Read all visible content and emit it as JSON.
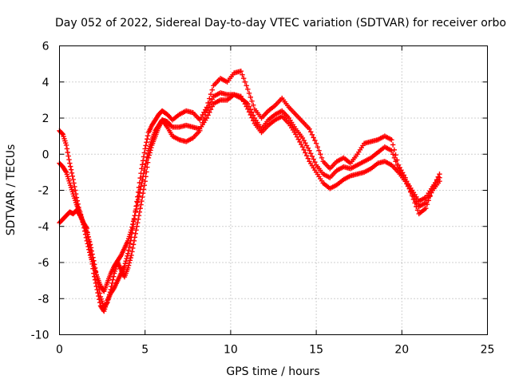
{
  "chart_data": {
    "type": "scatter",
    "title": "Day 052 of 2022, Sidereal Day-to-day VTEC variation (SDTVAR) for receiver orbo",
    "xlabel": "GPS time / hours",
    "ylabel": "SDTVAR / TECUs",
    "xlim": [
      0,
      25
    ],
    "ylim": [
      -10,
      6
    ],
    "xticks": [
      0,
      5,
      10,
      15,
      20,
      25
    ],
    "yticks": [
      -10,
      -8,
      -6,
      -4,
      -2,
      0,
      2,
      4,
      6
    ],
    "grid": true,
    "marker": "plus",
    "color": "#ff0000",
    "series": [
      {
        "x": [
          0.0,
          0.2,
          0.4,
          0.6,
          0.8,
          1.0,
          1.2,
          1.4,
          1.6,
          1.8,
          2.0,
          2.2,
          2.4,
          2.6,
          2.8,
          3.0,
          3.2,
          3.4,
          3.6,
          3.8,
          4.0,
          4.2,
          4.4,
          4.6,
          4.8,
          5.0,
          5.2,
          5.4,
          5.6,
          5.8,
          6.0,
          6.3,
          6.6,
          7.0,
          7.4,
          7.8,
          8.2,
          8.6,
          9.0,
          9.4,
          9.8,
          10.2,
          10.6,
          11.0,
          11.4,
          11.8,
          12.2,
          12.6,
          13.0,
          13.4,
          13.8,
          14.2,
          14.6,
          15.0,
          15.4,
          15.8,
          16.2,
          16.6,
          17.0,
          17.4,
          17.8,
          18.2,
          18.6,
          19.0,
          19.4,
          19.8,
          20.2,
          20.6,
          21.0,
          21.4,
          21.8,
          22.2
        ],
        "y": [
          1.3,
          1.1,
          0.5,
          -0.5,
          -1.4,
          -2.4,
          -3.3,
          -3.8,
          -4.1,
          -5.3,
          -6.6,
          -7.5,
          -8.4,
          -8.7,
          -8.1,
          -7.7,
          -7.4,
          -7.0,
          -6.6,
          -6.2,
          -5.5,
          -4.6,
          -3.4,
          -2.1,
          -0.8,
          0.3,
          1.2,
          1.6,
          1.9,
          2.2,
          2.4,
          2.2,
          1.9,
          2.2,
          2.4,
          2.3,
          1.9,
          2.6,
          3.8,
          4.2,
          4.0,
          4.5,
          4.6,
          3.6,
          2.5,
          2.0,
          2.4,
          2.7,
          3.1,
          2.6,
          2.2,
          1.8,
          1.4,
          0.6,
          -0.4,
          -0.8,
          -0.4,
          -0.2,
          -0.5,
          0.0,
          0.6,
          0.7,
          0.8,
          1.0,
          0.8,
          -0.6,
          -1.3,
          -2.3,
          -3.3,
          -3.0,
          -1.9,
          -1.1
        ]
      },
      {
        "x": [
          0.0,
          0.2,
          0.4,
          0.6,
          0.8,
          1.0,
          1.2,
          1.4,
          1.6,
          1.8,
          2.0,
          2.2,
          2.4,
          2.6,
          2.8,
          3.0,
          3.2,
          3.4,
          3.6,
          3.8,
          4.0,
          4.2,
          4.4,
          4.6,
          4.8,
          5.0,
          5.2,
          5.4,
          5.6,
          5.8,
          6.0,
          6.3,
          6.6,
          7.0,
          7.4,
          7.8,
          8.2,
          8.6,
          9.0,
          9.4,
          9.8,
          10.2,
          10.6,
          11.0,
          11.4,
          11.8,
          12.2,
          12.6,
          13.0,
          13.4,
          13.8,
          14.2,
          14.6,
          15.0,
          15.4,
          15.8,
          16.2,
          16.6,
          17.0,
          17.4,
          17.8,
          18.2,
          18.6,
          19.0,
          19.4,
          19.8,
          20.2,
          20.6,
          21.0,
          21.4,
          21.8,
          22.2
        ],
        "y": [
          -3.8,
          -3.6,
          -3.4,
          -3.2,
          -3.3,
          -3.1,
          -3.4,
          -3.8,
          -4.3,
          -5.0,
          -5.9,
          -6.9,
          -7.9,
          -8.5,
          -8.2,
          -7.5,
          -6.6,
          -6.0,
          -6.4,
          -6.8,
          -6.3,
          -5.6,
          -4.6,
          -3.6,
          -2.6,
          -1.5,
          -0.2,
          0.5,
          1.0,
          1.5,
          1.9,
          1.5,
          1.0,
          0.8,
          0.7,
          0.9,
          1.3,
          2.4,
          3.2,
          3.4,
          3.3,
          3.3,
          3.2,
          2.5,
          1.7,
          1.2,
          1.6,
          1.9,
          2.1,
          1.7,
          1.1,
          0.4,
          -0.4,
          -1.0,
          -1.6,
          -1.9,
          -1.7,
          -1.4,
          -1.2,
          -1.1,
          -1.0,
          -0.8,
          -0.5,
          -0.4,
          -0.6,
          -1.0,
          -1.5,
          -2.2,
          -2.9,
          -2.7,
          -2.0,
          -1.5
        ]
      },
      {
        "x": [
          0.0,
          0.2,
          0.4,
          0.6,
          0.8,
          1.0,
          1.2,
          1.4,
          1.6,
          1.8,
          2.0,
          2.2,
          2.4,
          2.6,
          2.8,
          3.0,
          3.2,
          3.4,
          3.6,
          3.8,
          4.0,
          4.2,
          4.4,
          4.6,
          4.8,
          5.0,
          5.2,
          5.4,
          5.6,
          5.8,
          6.0,
          6.3,
          6.6,
          7.0,
          7.4,
          7.8,
          8.2,
          8.6,
          9.0,
          9.4,
          9.8,
          10.2,
          10.6,
          11.0,
          11.4,
          11.8,
          12.2,
          12.6,
          13.0,
          13.4,
          13.8,
          14.2,
          14.6,
          15.0,
          15.4,
          15.8,
          16.2,
          16.6,
          17.0,
          17.4,
          17.8,
          18.2,
          18.6,
          19.0,
          19.4,
          19.8,
          20.2,
          20.6,
          21.0,
          21.4,
          21.8,
          22.2
        ],
        "y": [
          -0.5,
          -0.7,
          -1.0,
          -1.6,
          -2.2,
          -2.8,
          -3.2,
          -3.9,
          -4.8,
          -5.6,
          -6.2,
          -6.8,
          -7.3,
          -7.6,
          -7.1,
          -6.6,
          -6.2,
          -5.9,
          -5.6,
          -5.2,
          -4.8,
          -4.2,
          -3.4,
          -2.5,
          -1.6,
          -0.7,
          0.2,
          0.8,
          1.3,
          1.6,
          1.9,
          1.8,
          1.5,
          1.5,
          1.6,
          1.5,
          1.4,
          2.0,
          2.8,
          3.0,
          3.0,
          3.3,
          3.1,
          2.8,
          2.0,
          1.4,
          1.9,
          2.2,
          2.4,
          2.0,
          1.4,
          0.9,
          0.2,
          -0.6,
          -1.1,
          -1.3,
          -0.9,
          -0.7,
          -0.8,
          -0.6,
          -0.4,
          -0.2,
          0.1,
          0.4,
          0.2,
          -0.8,
          -1.4,
          -2.0,
          -2.6,
          -2.4,
          -1.8,
          -1.3
        ]
      }
    ]
  }
}
